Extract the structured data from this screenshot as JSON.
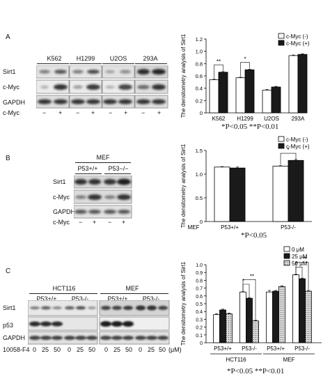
{
  "panels": {
    "A": {
      "letter": "A",
      "blot": {
        "groups": [
          "K562",
          "H1299",
          "U2OS",
          "293A"
        ],
        "rows": [
          "Sirt1",
          "c-Myc",
          "GAPDH"
        ],
        "treatment_label": "c-Myc",
        "treatment_signs": [
          "−",
          "+",
          "−",
          "+",
          "−",
          "+",
          "−",
          "+"
        ]
      },
      "legend": [
        "c-Myc (-)",
        "c-Myc (+)"
      ],
      "footnote": "*P<0.05   **P<0.01"
    },
    "B": {
      "letter": "B",
      "blot": {
        "cell_label": "MEF",
        "groups": [
          "P53+/+",
          "P53−/−"
        ],
        "rows": [
          "Sirt1",
          "c-Myc",
          "GAPDH"
        ],
        "treatment_label": "c-Myc",
        "treatment_signs": [
          "−",
          "+",
          "−",
          "+"
        ]
      },
      "legend": [
        "c-Myc (-)",
        "c-Myc (+)"
      ],
      "footnote": "*P<0.05"
    },
    "C": {
      "letter": "C",
      "blot": {
        "groups": [
          "HCT116",
          "MEF"
        ],
        "subgroups": [
          "P53+/+",
          "P53-/-",
          "P53+/+",
          "P53-/-"
        ],
        "rows": [
          "Sirt1",
          "p53",
          "GAPDH"
        ],
        "treatment_label": "10058-F4",
        "doses": [
          "0",
          "25",
          "50",
          "0",
          "25",
          "50",
          "0",
          "25",
          "50",
          "0",
          "25",
          "50"
        ],
        "unit": "(μM)"
      },
      "legend": [
        "0 μM",
        "25 μM",
        "50 μM"
      ],
      "footnote": "*P<0.05   **P<0.01"
    }
  },
  "chart_data": [
    {
      "type": "bar",
      "panel": "A",
      "ylabel": "The densitometry analysis of Sirt1",
      "categories": [
        "K562",
        "H1299",
        "U2OS",
        "293A"
      ],
      "series": [
        {
          "name": "c-Myc (-)",
          "values": [
            0.54,
            0.57,
            0.37,
            0.93
          ],
          "errors": [
            0.01,
            0.01,
            0.01,
            0.01
          ]
        },
        {
          "name": "c-Myc (+)",
          "values": [
            0.66,
            0.7,
            0.42,
            0.95
          ],
          "errors": [
            0.01,
            0.01,
            0.01,
            0.01
          ]
        }
      ],
      "ylim": [
        0,
        1.2
      ],
      "yticks": [
        "0",
        "0.2",
        "0.4",
        "0.6",
        "0.8",
        "1.0",
        "1.2"
      ],
      "significance": [
        {
          "category": 0,
          "mark": "**"
        },
        {
          "category": 1,
          "mark": "*"
        }
      ],
      "legend_position": "top-right"
    },
    {
      "type": "bar",
      "panel": "B",
      "ylabel": "The densitometry analysis of Sirt1",
      "xprefix": "MEF",
      "categories": [
        "P53+/+",
        "P53-/-"
      ],
      "series": [
        {
          "name": "c-Myc (-)",
          "values": [
            1.15,
            1.17
          ],
          "errors": [
            0.01,
            0.01
          ]
        },
        {
          "name": "c-Myc (+)",
          "values": [
            1.13,
            1.29
          ],
          "errors": [
            0.02,
            0.02
          ]
        }
      ],
      "ylim": [
        0,
        1.5
      ],
      "yticks": [
        "0",
        "0.5",
        "1.0",
        "1.5"
      ],
      "significance": [
        {
          "category": 1,
          "mark": "*"
        }
      ],
      "legend_position": "top-right"
    },
    {
      "type": "bar",
      "panel": "C",
      "ylabel": "The densitometry analysis of Sirt1",
      "categories": [
        "P53+/+",
        "P53-/-",
        "P53+/+",
        "P53-/-"
      ],
      "groups": [
        {
          "name": "HCT116",
          "span": [
            0,
            1
          ]
        },
        {
          "name": "MEF",
          "span": [
            2,
            3
          ]
        }
      ],
      "series": [
        {
          "name": "0 μM",
          "values": [
            0.36,
            0.65,
            0.65,
            0.87
          ],
          "errors": [
            0.01,
            0.01,
            0.02,
            0.01
          ]
        },
        {
          "name": "25 μM",
          "values": [
            0.42,
            0.57,
            0.66,
            0.82
          ],
          "errors": [
            0.01,
            0.01,
            0.01,
            0.01
          ]
        },
        {
          "name": "50 μM",
          "values": [
            0.37,
            0.28,
            0.72,
            0.66
          ],
          "errors": [
            0.01,
            0.01,
            0.01,
            0.01
          ]
        }
      ],
      "ylim": [
        0,
        1.0
      ],
      "yticks": [
        "0",
        "0.1",
        "0.2",
        "0.3",
        "0.4",
        "0.5",
        "0.6",
        "0.7",
        "0.8",
        "0.9",
        "1.0"
      ],
      "significance": [
        {
          "category": 1,
          "pair": [
            0,
            1
          ],
          "mark": "*"
        },
        {
          "category": 1,
          "pair": [
            0,
            2
          ],
          "mark": "**"
        },
        {
          "category": 3,
          "pair": [
            0,
            1
          ],
          "mark": "*"
        },
        {
          "category": 3,
          "pair": [
            0,
            2
          ],
          "mark": "**"
        }
      ],
      "legend_position": "top-right"
    }
  ]
}
